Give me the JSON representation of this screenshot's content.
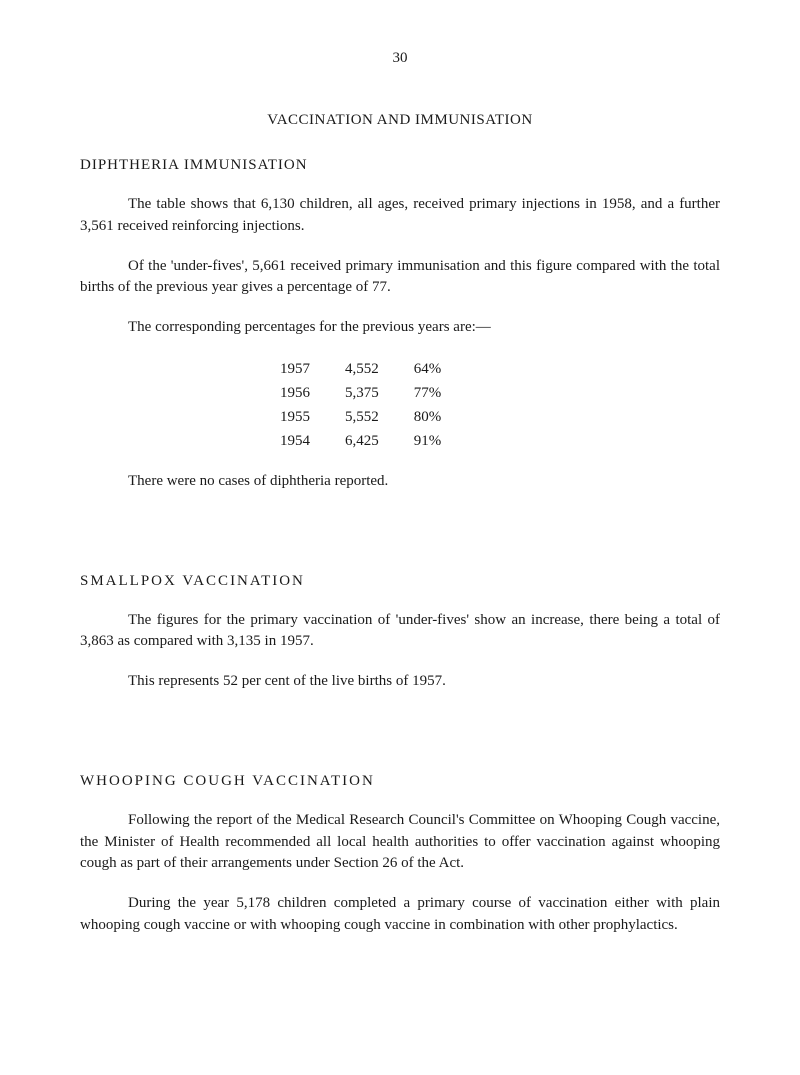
{
  "page_number": "30",
  "main_title": "VACCINATION AND IMMUNISATION",
  "sections": [
    {
      "title": "DIPHTHERIA IMMUNISATION",
      "paragraphs": [
        "The table shows that 6,130 children, all ages, received primary injections in 1958, and a further 3,561 received reinforcing injections.",
        "Of the 'under-fives', 5,661 received primary immunisation and this figure compared with the total births of the previous year gives a percentage of 77.",
        "The corresponding percentages for the previous years are:—"
      ],
      "table": {
        "rows": [
          [
            "1957",
            "4,552",
            "64%"
          ],
          [
            "1956",
            "5,375",
            "77%"
          ],
          [
            "1955",
            "5,552",
            "80%"
          ],
          [
            "1954",
            "6,425",
            "91%"
          ]
        ]
      },
      "after_table": "There were no cases of diphtheria reported."
    },
    {
      "title": "SMALLPOX VACCINATION",
      "paragraphs": [
        "The figures for the primary vaccination of 'under-fives' show an increase, there being a total of 3,863 as compared with 3,135 in 1957.",
        "This represents 52 per cent of the live births of 1957."
      ]
    },
    {
      "title": "WHOOPING COUGH VACCINATION",
      "paragraphs": [
        "Following the report of the Medical Research Council's Committee on Whooping Cough vaccine, the Minister of Health recommended all local health authorities to offer vaccination against whooping cough as part of their arrangements under Section 26 of the Act.",
        "During the year 5,178 children completed a primary course of vaccination either with plain whooping cough vaccine or with whooping cough vaccine in combination with other prophylactics."
      ]
    }
  ]
}
